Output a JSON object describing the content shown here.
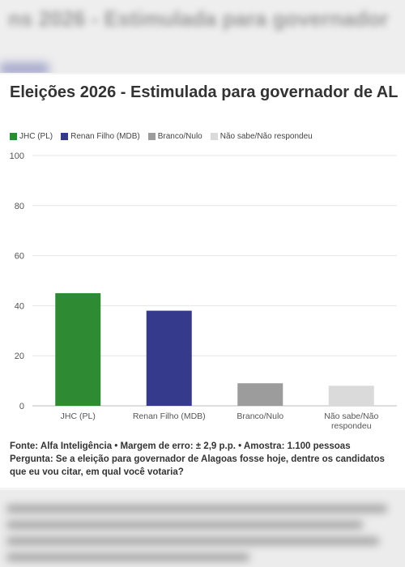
{
  "background": {
    "top_text": "ns 2026 - Estimulada para governador"
  },
  "chart": {
    "title": "Eleições 2026 - Estimulada para governador de AL",
    "legend": [
      {
        "label": "JHC (PL)",
        "color": "#2e8b34"
      },
      {
        "label": "Renan Filho (MDB)",
        "color": "#363a8c"
      },
      {
        "label": "Branco/Nulo",
        "color": "#9c9c9c"
      },
      {
        "label": "Não sabe/Não respondeu",
        "color": "#dadada"
      }
    ],
    "footer_source": "Fonte: Alfa Inteligência • Margem de erro: ± 2,9 p.p. • Amostra: 1.100 pessoas",
    "footer_question": "Pergunta: Se a eleição para governador de Alagoas fosse hoje, dentre os candidatos que eu vou citar, em qual você votaria?"
  },
  "chart_data": {
    "type": "bar",
    "title": "Eleições 2026 - Estimulada para governador de AL",
    "categories": [
      "JHC (PL)",
      "Renan Filho (MDB)",
      "Branco/Nulo",
      "Não sabe/Não respondeu"
    ],
    "category_lines": [
      [
        "JHC (PL)"
      ],
      [
        "Renan Filho (MDB)"
      ],
      [
        "Branco/Nulo"
      ],
      [
        "Não sabe/Não",
        "respondeu"
      ]
    ],
    "values": [
      45,
      38,
      9,
      8
    ],
    "colors": [
      "#2e8b34",
      "#363a8c",
      "#9c9c9c",
      "#dadada"
    ],
    "ylim": [
      0,
      100
    ],
    "yticks": [
      0,
      20,
      40,
      60,
      80,
      100
    ],
    "grid": true,
    "legend_position": "top-left",
    "xlabel": "",
    "ylabel": ""
  }
}
